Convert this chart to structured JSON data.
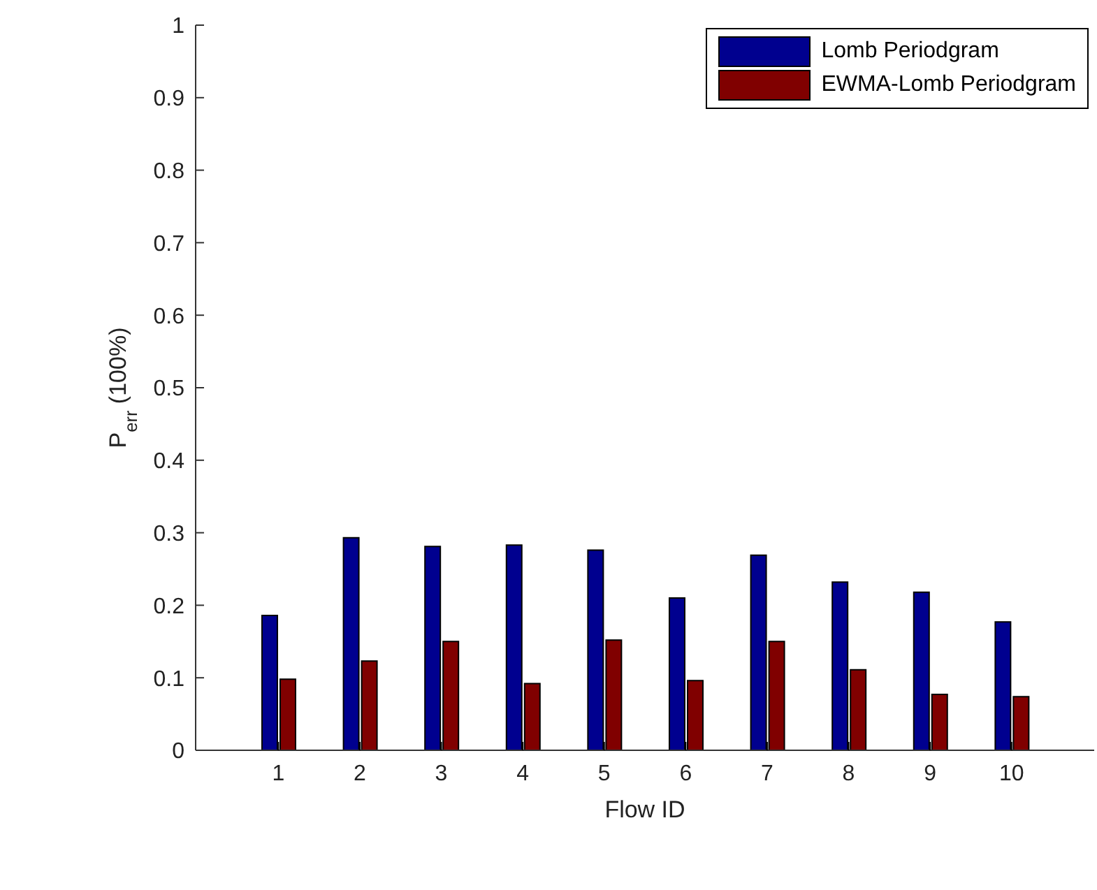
{
  "chart_data": {
    "type": "bar",
    "xlabel": "Flow ID",
    "ylabel": "P$_{err}$ (100%)",
    "categories": [
      "1",
      "2",
      "3",
      "4",
      "5",
      "6",
      "7",
      "8",
      "9",
      "10"
    ],
    "series": [
      {
        "name": "Lomb Periodgram",
        "color": "#00008f",
        "values": [
          0.186,
          0.293,
          0.281,
          0.283,
          0.276,
          0.21,
          0.269,
          0.232,
          0.218,
          0.177
        ]
      },
      {
        "name": "EWMA-Lomb Periodgram",
        "color": "#800000",
        "values": [
          0.098,
          0.123,
          0.15,
          0.092,
          0.152,
          0.096,
          0.15,
          0.111,
          0.077,
          0.074
        ]
      }
    ],
    "ylim": [
      0,
      1
    ],
    "yticks": [
      0,
      0.1,
      0.2,
      0.3,
      0.4,
      0.5,
      0.6,
      0.7,
      0.8,
      0.9,
      1
    ],
    "grid": false,
    "legend": "top right"
  }
}
